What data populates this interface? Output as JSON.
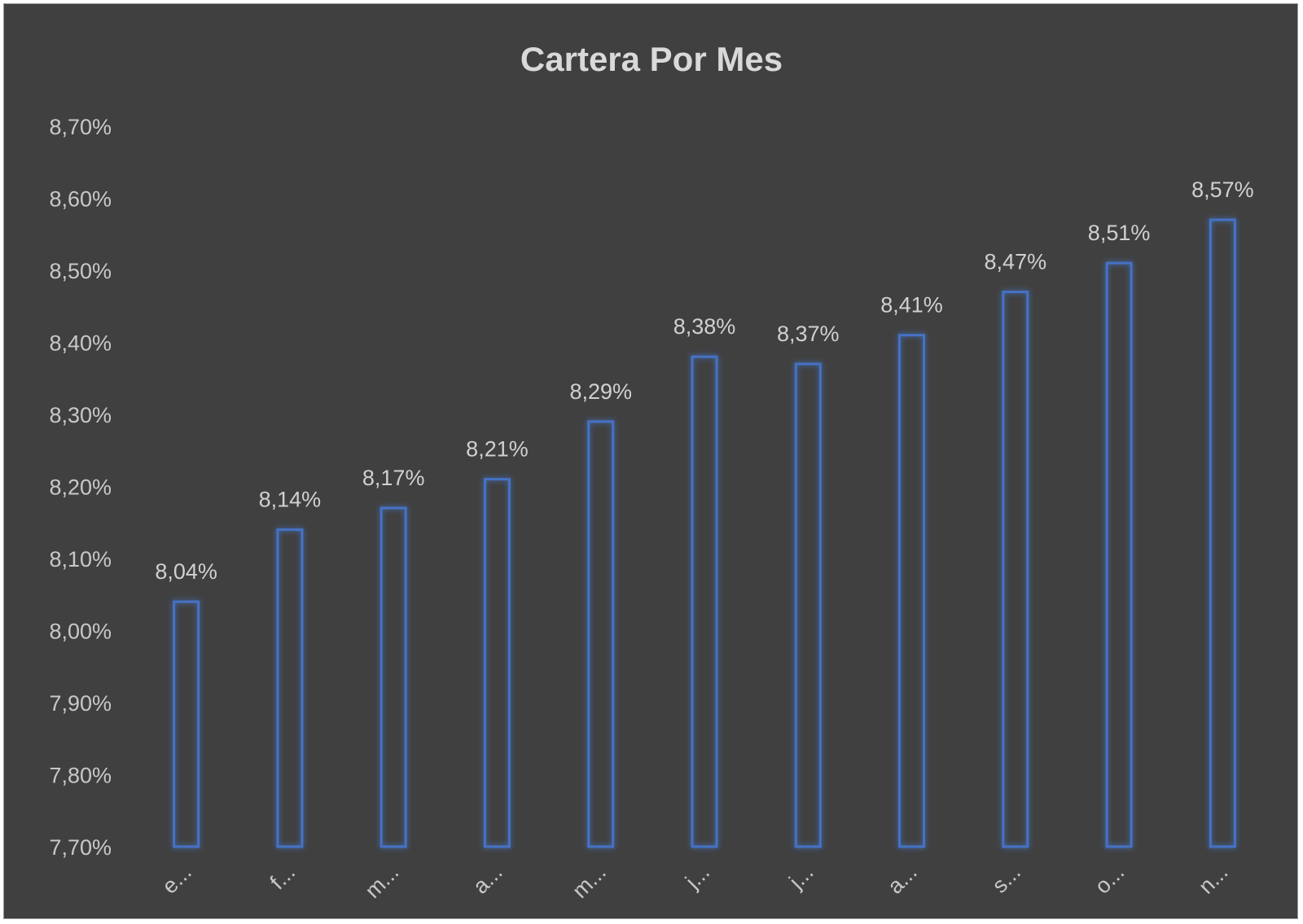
{
  "chart_data": {
    "type": "bar",
    "title": "Cartera Por Mes",
    "xlabel": "",
    "ylabel": "",
    "categories": [
      "e...",
      "f...",
      "m...",
      "a...",
      "m...",
      "j...",
      "j...",
      "a...",
      "s...",
      "o...",
      "n..."
    ],
    "values": [
      8.04,
      8.14,
      8.17,
      8.21,
      8.29,
      8.38,
      8.37,
      8.41,
      8.47,
      8.51,
      8.57
    ],
    "data_labels": [
      "8,04%",
      "8,14%",
      "8,17%",
      "8,21%",
      "8,29%",
      "8,38%",
      "8,37%",
      "8,41%",
      "8,47%",
      "8,51%",
      "8,57%"
    ],
    "ylim": [
      7.7,
      8.7
    ],
    "yticks": [
      7.7,
      7.8,
      7.9,
      8.0,
      8.1,
      8.2,
      8.3,
      8.4,
      8.5,
      8.6,
      8.7
    ],
    "ytick_labels": [
      "7,70%",
      "7,80%",
      "7,90%",
      "8,00%",
      "8,10%",
      "8,20%",
      "8,30%",
      "8,40%",
      "8,50%",
      "8,60%",
      "8,70%"
    ],
    "grid": false,
    "legend": "none",
    "colors": {
      "background": "#404040",
      "bar_outline": "#4472c4",
      "bar_glow": "#2f5597",
      "text": "#d9d9d9"
    }
  }
}
